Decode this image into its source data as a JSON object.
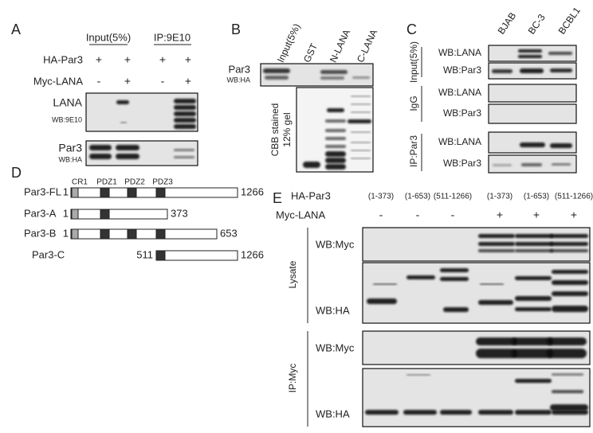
{
  "panel_a": {
    "label": "A",
    "input_header": "Input(5%)",
    "ip_header": "IP:9E10",
    "rows": [
      {
        "name": "HA-Par3",
        "signs": [
          "+",
          "+",
          "+",
          "+"
        ]
      },
      {
        "name": "Myc-LANA",
        "signs": [
          "-",
          "+",
          "-",
          "+"
        ]
      }
    ],
    "blots": [
      {
        "target": "LANA",
        "antibody": "WB:9E10"
      },
      {
        "target": "Par3",
        "antibody": "WB:HA"
      }
    ]
  },
  "panel_b": {
    "label": "B",
    "lanes": [
      "Input(5%)",
      "GST",
      "N-LANA",
      "C-LANA"
    ],
    "blot": {
      "target": "Par3",
      "antibody": "WB:HA"
    },
    "gel_label": [
      "CBB stained",
      "12% gel"
    ]
  },
  "panel_c": {
    "label": "C",
    "lanes": [
      "BJAB",
      "BC-3",
      "BCBL1"
    ],
    "groups": [
      {
        "name": "Input(5%)",
        "blots": [
          "WB:LANA",
          "WB:Par3"
        ]
      },
      {
        "name": "IgG",
        "blots": [
          "WB:LANA",
          "WB:Par3"
        ]
      },
      {
        "name": "IP:Par3",
        "blots": [
          "WB:LANA",
          "WB:Par3"
        ]
      }
    ]
  },
  "panel_d": {
    "label": "D",
    "domains": [
      "CR1",
      "PDZ1",
      "PDZ2",
      "PDZ3"
    ],
    "constructs": [
      {
        "name": "Par3-FL",
        "start": "1",
        "end": "1266"
      },
      {
        "name": "Par3-A",
        "start": "1",
        "end": "373"
      },
      {
        "name": "Par3-B",
        "start": "1",
        "end": "653"
      },
      {
        "name": "Par3-C",
        "start": "511",
        "end": "1266"
      }
    ]
  },
  "panel_e": {
    "label": "E",
    "rows": [
      {
        "name": "HA-Par3",
        "entries": [
          "(1-373)",
          "(1-653)",
          "(511-1266)",
          "(1-373)",
          "(1-653)",
          "(511-1266)"
        ]
      },
      {
        "name": "Myc-LANA",
        "entries": [
          "-",
          "-",
          "-",
          "+",
          "+",
          "+"
        ]
      }
    ],
    "groups": [
      {
        "name": "Lysate",
        "blots": [
          "WB:Myc",
          "WB:HA"
        ]
      },
      {
        "name": "IP:Myc",
        "blots": [
          "WB:Myc",
          "WB:HA"
        ]
      }
    ]
  }
}
